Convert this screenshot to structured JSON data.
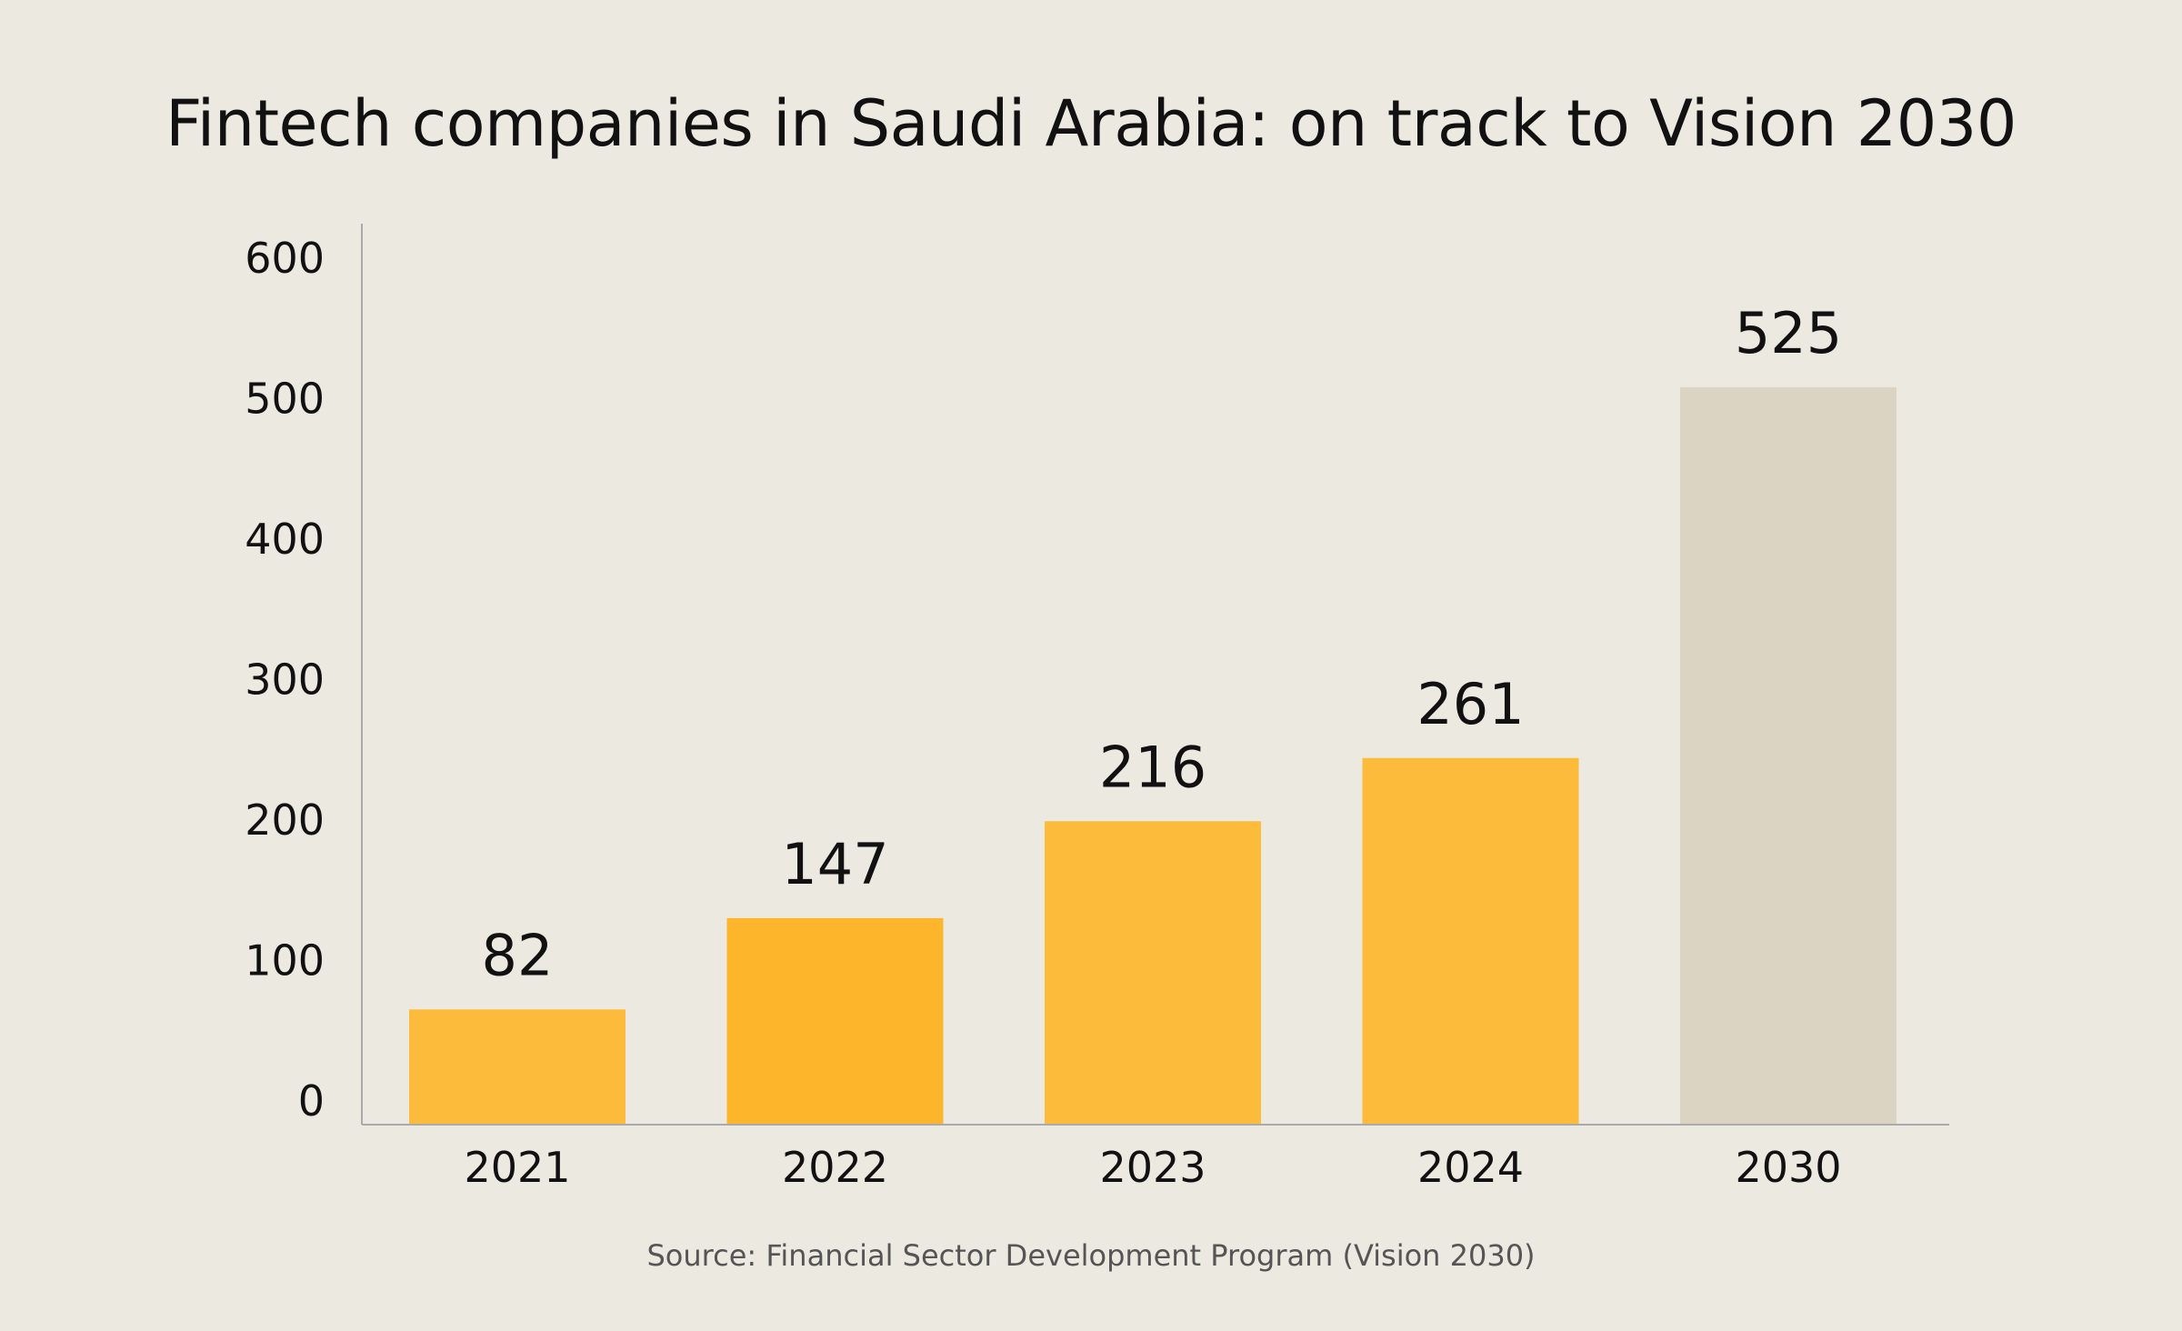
{
  "chart_data": {
    "type": "bar",
    "title": "Fintech companies in Saudi Arabia: on track to Vision 2030",
    "source": "Source: Financial Sector Development Program (Vision 2030)",
    "categories": [
      "2021",
      "2022",
      "2023",
      "2024",
      "2030"
    ],
    "values": [
      82,
      147,
      216,
      261,
      525
    ],
    "bar_colors": [
      "#FDBB3C",
      "#FDB52B",
      "#FDBB3C",
      "#FDBB3C",
      "#DCD4C3"
    ],
    "y_ticks": [
      "0",
      "100",
      "200",
      "300",
      "400",
      "500",
      "600"
    ],
    "ylim": [
      0,
      640
    ],
    "xlabel": "",
    "ylabel": "",
    "grid": false,
    "legend": "none"
  },
  "colors": {
    "background": "#ECE9E1",
    "axis": "#AAAAAA",
    "text": "#111111",
    "source_text": "#555555"
  }
}
